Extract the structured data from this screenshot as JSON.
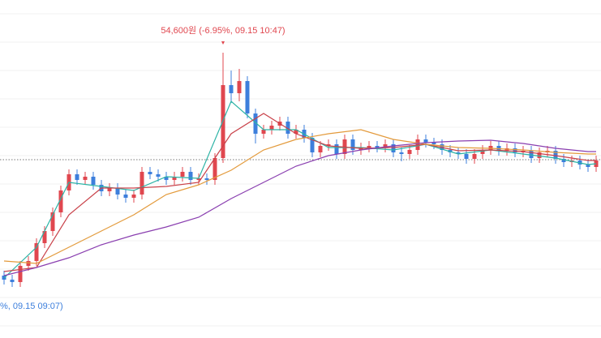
{
  "chart_data": {
    "type": "candlestick",
    "ylim": [
      37000,
      57850
    ],
    "up_color": "#e0474f",
    "down_color": "#3d7fdc",
    "open": [
      40850,
      40600,
      40450,
      41450,
      41750,
      42850,
      43600,
      44750,
      46100,
      47100,
      46750,
      46950,
      46450,
      46050,
      46250,
      45850,
      45650,
      45850,
      47250,
      47100,
      46950,
      46750,
      46950,
      47250,
      46750,
      46850,
      46750,
      48100,
      52600,
      52100,
      52850,
      50850,
      49600,
      49850,
      50100,
      50350,
      49600,
      49850,
      49350,
      48450,
      48850,
      48950,
      48350,
      49250,
      48600,
      48750,
      48850,
      48750,
      48950,
      48450,
      48350,
      48600,
      49250,
      49050,
      48950,
      48600,
      48450,
      48350,
      48050,
      48350,
      48600,
      48850,
      48550,
      48700,
      48450,
      48550,
      48100,
      48450,
      48550,
      48050,
      47850,
      47950,
      47700,
      47550
    ],
    "high": [
      41150,
      40900,
      41750,
      42050,
      43150,
      43900,
      45050,
      46400,
      47400,
      47400,
      47250,
      47250,
      46750,
      46550,
      46550,
      46150,
      46150,
      47550,
      47550,
      47400,
      47250,
      47250,
      47550,
      47550,
      47150,
      47150,
      48400,
      54600,
      53500,
      53600,
      53150,
      51150,
      50150,
      50400,
      50650,
      50650,
      50150,
      50150,
      49650,
      49150,
      49250,
      49250,
      49550,
      49550,
      49050,
      49150,
      49150,
      49250,
      49250,
      48750,
      48900,
      49550,
      49550,
      49350,
      49250,
      48900,
      48750,
      48650,
      48650,
      48900,
      49150,
      49150,
      49000,
      49000,
      48850,
      48850,
      48750,
      48850,
      48850,
      48350,
      48250,
      48250,
      48000,
      48250
    ],
    "low": [
      40300,
      40150,
      40150,
      41150,
      41450,
      42550,
      43300,
      44450,
      45800,
      46450,
      46450,
      46150,
      45750,
      45750,
      45550,
      45350,
      45350,
      45550,
      46800,
      46650,
      46450,
      46450,
      46650,
      46450,
      46450,
      46450,
      46450,
      47800,
      51500,
      51600,
      50550,
      49000,
      49300,
      49550,
      49800,
      49300,
      49300,
      49050,
      48150,
      48150,
      48550,
      48050,
      48050,
      48300,
      48300,
      48450,
      48450,
      48450,
      48150,
      47900,
      48050,
      48300,
      48750,
      48650,
      48300,
      48150,
      48050,
      47750,
      47750,
      48050,
      48300,
      48250,
      48250,
      48150,
      48150,
      47800,
      47800,
      48150,
      47750,
      47550,
      47550,
      47400,
      47250,
      47250
    ],
    "close": [
      40600,
      40450,
      41450,
      41750,
      42850,
      43600,
      44750,
      46100,
      47100,
      46750,
      46950,
      46450,
      46050,
      46250,
      45850,
      45650,
      45850,
      47250,
      47100,
      46950,
      46750,
      46950,
      47250,
      46750,
      46850,
      46750,
      48100,
      52600,
      52100,
      52850,
      50850,
      49600,
      49850,
      50100,
      50350,
      49600,
      49850,
      49350,
      48450,
      48850,
      48950,
      48350,
      49250,
      48600,
      48750,
      48850,
      48750,
      48950,
      48450,
      48350,
      48600,
      49250,
      49050,
      48950,
      48600,
      48450,
      48350,
      48050,
      48350,
      48600,
      48850,
      48550,
      48700,
      48450,
      48550,
      48100,
      48450,
      48550,
      48050,
      47850,
      47950,
      47700,
      47550,
      47950
    ],
    "moving_averages": [
      {
        "color": "#2bb3a5",
        "x": [
          0,
          4,
          8,
          12,
          16,
          20,
          24,
          28,
          32,
          36,
          40,
          44,
          48,
          52,
          56,
          60,
          64,
          68,
          72,
          73
        ],
        "values": [
          40700,
          42600,
          46600,
          46350,
          46100,
          46950,
          46850,
          51600,
          49850,
          49850,
          48750,
          48750,
          48600,
          48950,
          48350,
          48600,
          48350,
          48100,
          47700,
          47750
        ]
      },
      {
        "color": "#c9424a",
        "x": [
          0,
          4,
          8,
          12,
          16,
          20,
          24,
          28,
          32,
          36,
          40,
          44,
          48,
          52,
          56,
          60,
          64,
          68,
          72,
          73
        ],
        "values": [
          41100,
          41350,
          44600,
          46250,
          46250,
          46350,
          46600,
          49600,
          50850,
          49600,
          48850,
          48700,
          48750,
          48950,
          48550,
          48600,
          48500,
          48250,
          47950,
          47950
        ]
      },
      {
        "color": "#e39a3b",
        "x": [
          0,
          4,
          8,
          12,
          16,
          20,
          24,
          28,
          32,
          36,
          40,
          44,
          48,
          52,
          56,
          60,
          64,
          68,
          72,
          73
        ],
        "values": [
          41750,
          41600,
          42600,
          43600,
          44600,
          45850,
          46450,
          47350,
          48600,
          49250,
          49600,
          49850,
          49250,
          48950,
          48750,
          48700,
          48600,
          48450,
          48350,
          48350
        ]
      },
      {
        "color": "#8a3fb0",
        "x": [
          0,
          4,
          8,
          12,
          16,
          20,
          24,
          28,
          32,
          36,
          40,
          44,
          48,
          52,
          56,
          60,
          64,
          68,
          72,
          73
        ],
        "values": [
          40850,
          41350,
          41950,
          42750,
          43350,
          43850,
          44450,
          45600,
          46600,
          47600,
          48250,
          48600,
          48850,
          49050,
          49150,
          49200,
          49000,
          48700,
          48500,
          48500
        ]
      }
    ],
    "reference_line": {
      "value": 48000,
      "color": "#777"
    },
    "high_label": "54,600원 (-6.95%, 09.15 10:47)",
    "low_label": "%, 09.15 09:07)"
  }
}
